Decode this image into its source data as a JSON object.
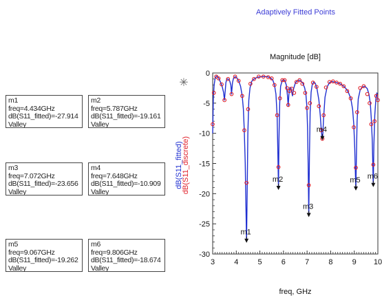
{
  "header": {
    "title": "Adaptively Fitted Points"
  },
  "marker_readouts": [
    {
      "name": "m1",
      "freq": "freq=4.434GHz",
      "value": "dB(S11_fitted)=-27.914",
      "kind": "Valley"
    },
    {
      "name": "m2",
      "freq": "freq=5.787GHz",
      "value": "dB(S11_fitted)=-19.161",
      "kind": "Valley"
    },
    {
      "name": "m3",
      "freq": "freq=7.072GHz",
      "value": "dB(S11_fitted)=-23.656",
      "kind": "Valley"
    },
    {
      "name": "m4",
      "freq": "freq=7.648GHz",
      "value": "dB(S11_fitted)=-10.909",
      "kind": "Valley"
    },
    {
      "name": "m5",
      "freq": "freq=9.067GHz",
      "value": "dB(S11_fitted)=-19.262",
      "kind": "Valley"
    },
    {
      "name": "m6",
      "freq": "freq=9.806GHz",
      "value": "dB(S11_fitted)=-18.674",
      "kind": "Valley"
    }
  ],
  "chart_data": {
    "type": "line",
    "title": "Magnitude [dB]",
    "xlabel": "freq, GHz",
    "ylabel_lines": [
      "dB(S11_fitted)",
      "dB(S11_discrete)"
    ],
    "xlim": [
      3,
      10
    ],
    "ylim": [
      -30,
      0
    ],
    "xticks": [
      "3",
      "4",
      "5",
      "6",
      "7",
      "8",
      "9",
      "10"
    ],
    "yticks": [
      "0",
      "-5",
      "-10",
      "-15",
      "-20",
      "-25",
      "-30"
    ],
    "grid": false,
    "colors": {
      "fitted": "#1f2fd0",
      "discrete": "#e0202a",
      "marker": "#111111",
      "title": "#3b3bd6"
    },
    "series": [
      {
        "name": "dB(S11_fitted)",
        "style": "line",
        "x": [
          3.0,
          3.03,
          3.06,
          3.1,
          3.14,
          3.18,
          3.22,
          3.27,
          3.33,
          3.4,
          3.46,
          3.5,
          3.53,
          3.56,
          3.6,
          3.66,
          3.72,
          3.77,
          3.8,
          3.84,
          3.88,
          3.95,
          4.02,
          4.1,
          4.18,
          4.25,
          4.3,
          4.34,
          4.38,
          4.41,
          4.434,
          4.46,
          4.49,
          4.53,
          4.58,
          4.65,
          4.75,
          4.9,
          5.1,
          5.3,
          5.45,
          5.55,
          5.62,
          5.68,
          5.73,
          5.76,
          5.787,
          5.81,
          5.84,
          5.88,
          5.95,
          6.05,
          6.12,
          6.17,
          6.2,
          6.23,
          6.27,
          6.32,
          6.38,
          6.43,
          6.5,
          6.58,
          6.66,
          6.74,
          6.82,
          6.9,
          6.95,
          6.99,
          7.02,
          7.045,
          7.072,
          7.1,
          7.13,
          7.17,
          7.22,
          7.28,
          7.35,
          7.42,
          7.5,
          7.56,
          7.6,
          7.63,
          7.648,
          7.67,
          7.7,
          7.76,
          7.85,
          7.95,
          8.05,
          8.15,
          8.25,
          8.35,
          8.45,
          8.55,
          8.65,
          8.75,
          8.85,
          8.93,
          8.98,
          9.02,
          9.045,
          9.067,
          9.09,
          9.12,
          9.17,
          9.25,
          9.35,
          9.45,
          9.55,
          9.62,
          9.68,
          9.72,
          9.76,
          9.786,
          9.806,
          9.83,
          9.87,
          9.92,
          9.96,
          10.0
        ],
        "y": [
          -10.0,
          -4.0,
          -2.0,
          -1.0,
          -0.6,
          -0.5,
          -0.6,
          -1.0,
          -1.5,
          -2.2,
          -3.2,
          -4.5,
          -3.0,
          -1.6,
          -1.0,
          -1.0,
          -1.3,
          -2.0,
          -3.5,
          -1.6,
          -0.9,
          -0.6,
          -0.8,
          -1.3,
          -2.2,
          -3.8,
          -6.0,
          -9.5,
          -15.0,
          -22.0,
          -27.914,
          -20.0,
          -10.0,
          -4.5,
          -2.5,
          -1.4,
          -1.0,
          -0.7,
          -0.6,
          -0.6,
          -0.8,
          -1.2,
          -2.0,
          -3.5,
          -7.0,
          -12.5,
          -19.161,
          -11.0,
          -5.0,
          -2.2,
          -1.2,
          -1.2,
          -2.0,
          -3.8,
          -5.5,
          -3.6,
          -2.4,
          -2.5,
          -3.8,
          -2.6,
          -1.7,
          -1.3,
          -1.2,
          -1.3,
          -1.7,
          -2.5,
          -3.5,
          -5.5,
          -9.0,
          -15.0,
          -23.656,
          -13.5,
          -6.5,
          -3.2,
          -1.9,
          -1.5,
          -1.7,
          -2.6,
          -4.5,
          -7.0,
          -9.3,
          -10.5,
          -10.909,
          -10.0,
          -7.5,
          -4.0,
          -2.3,
          -1.6,
          -1.4,
          -1.5,
          -1.6,
          -1.7,
          -1.9,
          -2.2,
          -2.6,
          -3.2,
          -4.2,
          -6.0,
          -8.5,
          -12.5,
          -16.5,
          -19.262,
          -14.0,
          -8.0,
          -4.3,
          -2.8,
          -2.3,
          -2.2,
          -2.6,
          -3.5,
          -5.0,
          -7.5,
          -11.0,
          -15.5,
          -18.674,
          -12.0,
          -7.0,
          -4.0,
          -3.3,
          -4.5
        ]
      },
      {
        "name": "dB(S11_discrete)",
        "style": "circle",
        "x": [
          3.0,
          3.05,
          3.15,
          3.25,
          3.38,
          3.5,
          3.65,
          3.8,
          3.95,
          4.1,
          4.25,
          4.34,
          4.434,
          4.5,
          4.6,
          4.75,
          4.95,
          5.15,
          5.35,
          5.5,
          5.62,
          5.73,
          5.787,
          5.85,
          5.95,
          6.05,
          6.15,
          6.2,
          6.25,
          6.35,
          6.45,
          6.55,
          6.68,
          6.8,
          6.92,
          7.0,
          7.072,
          7.12,
          7.25,
          7.4,
          7.5,
          7.6,
          7.648,
          7.7,
          7.8,
          7.95,
          8.1,
          8.25,
          8.4,
          8.55,
          8.7,
          8.85,
          8.98,
          9.067,
          9.12,
          9.25,
          9.4,
          9.55,
          9.65,
          9.72,
          9.806,
          9.86,
          9.93,
          10.0
        ],
        "y": [
          -8.5,
          -3.3,
          -0.6,
          -0.9,
          -1.9,
          -4.5,
          -1.0,
          -3.5,
          -0.6,
          -1.3,
          -3.8,
          -9.5,
          -18.2,
          -6.0,
          -1.8,
          -1.0,
          -0.6,
          -0.6,
          -0.7,
          -0.9,
          -2.0,
          -7.0,
          -15.6,
          -4.2,
          -1.2,
          -1.2,
          -2.5,
          -5.3,
          -3.0,
          -2.6,
          -3.3,
          -1.5,
          -1.2,
          -1.8,
          -3.3,
          -5.8,
          -18.6,
          -5.0,
          -1.6,
          -2.3,
          -5.5,
          -9.5,
          -10.9,
          -7.0,
          -2.4,
          -1.5,
          -1.4,
          -1.6,
          -1.8,
          -2.2,
          -3.0,
          -4.2,
          -9.0,
          -15.7,
          -6.5,
          -2.5,
          -2.2,
          -3.5,
          -5.0,
          -8.5,
          -15.2,
          -8.0,
          -3.8,
          -4.5
        ]
      }
    ],
    "markers": [
      {
        "label": "m1",
        "x": 4.434,
        "y": -27.914
      },
      {
        "label": "m2",
        "x": 5.787,
        "y": -19.161
      },
      {
        "label": "m3",
        "x": 7.072,
        "y": -23.656
      },
      {
        "label": "m4",
        "x": 7.648,
        "y": -10.909
      },
      {
        "label": "m5",
        "x": 9.067,
        "y": -19.262
      },
      {
        "label": "m6",
        "x": 9.806,
        "y": -18.674
      }
    ],
    "marker_symbol": "✳"
  }
}
